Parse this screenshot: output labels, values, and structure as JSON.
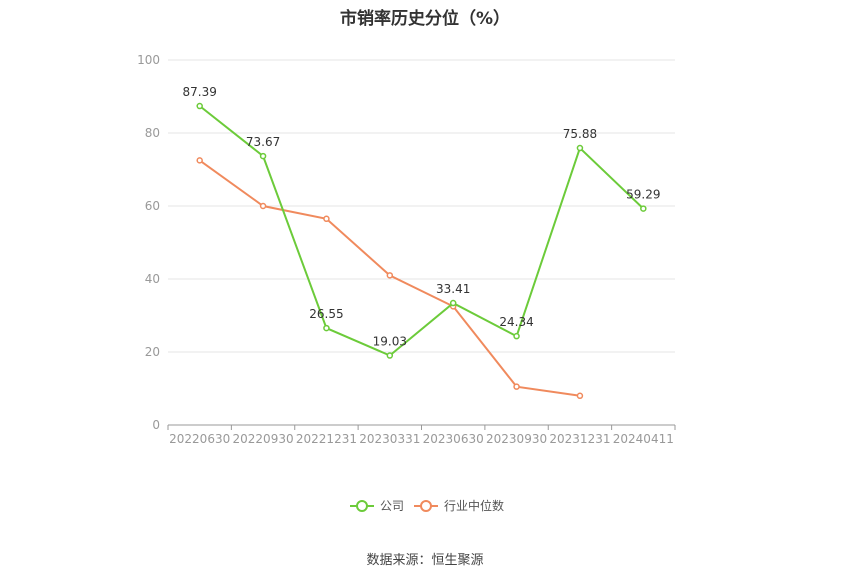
{
  "colors": {
    "company": "#6ccb3a",
    "industry": "#f08a5d",
    "grid": "#e6e6e6",
    "axis": "#999999",
    "tick_text": "#999999",
    "label_text": "#333333"
  },
  "footer": {
    "source": "数据来源：恒生聚源"
  },
  "chart_data": {
    "type": "line",
    "title": "市销率历史分位（%）",
    "xlabel": "",
    "ylabel": "",
    "categories": [
      "20220630",
      "20220930",
      "20221231",
      "20230331",
      "20230630",
      "20230930",
      "20231231",
      "20240411"
    ],
    "ylim": [
      0,
      100
    ],
    "yticks": [
      0,
      20,
      40,
      60,
      80,
      100
    ],
    "grid": true,
    "legend_position": "bottom-center",
    "series": [
      {
        "name": "公司",
        "color": "#6ccb3a",
        "values": [
          87.39,
          73.67,
          26.55,
          19.03,
          33.41,
          24.34,
          75.88,
          59.29
        ],
        "labels": [
          "87.39",
          "73.67",
          "26.55",
          "19.03",
          "33.41",
          "24.34",
          "75.88",
          "59.29"
        ]
      },
      {
        "name": "行业中位数",
        "color": "#f08a5d",
        "values": [
          72.5,
          60.0,
          56.5,
          41.0,
          32.5,
          10.5,
          8.0,
          null
        ],
        "labels": []
      }
    ]
  }
}
